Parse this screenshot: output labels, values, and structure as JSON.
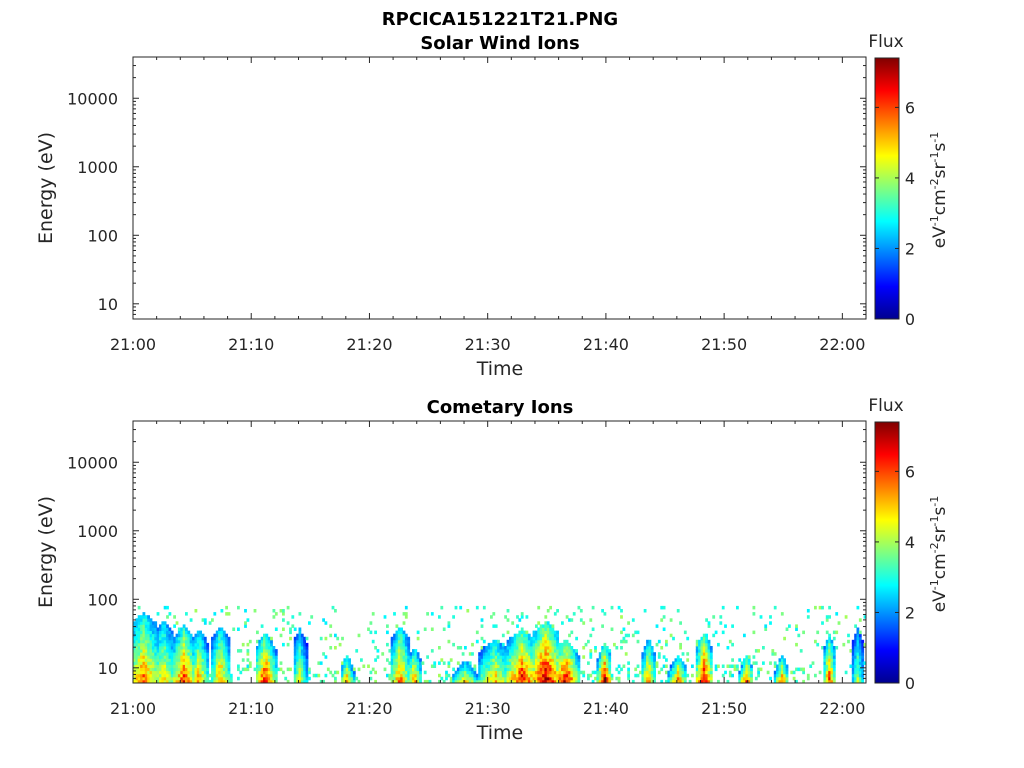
{
  "figure_title": "RPCICA151221T21.PNG",
  "colorbar": {
    "label": "Flux",
    "unit_parts": [
      "eV",
      "-1",
      "cm",
      "-2",
      "sr",
      "-1",
      "s",
      "-1"
    ],
    "ticks": [
      "0",
      "2",
      "4",
      "6"
    ],
    "range": [
      0,
      7.4
    ],
    "colormap": "jet"
  },
  "chart_data": [
    {
      "type": "heatmap",
      "title": "Solar Wind Ions",
      "xlabel": "Time",
      "ylabel": "Energy (eV)",
      "x_ticks": [
        "21:00",
        "21:10",
        "21:20",
        "21:30",
        "21:40",
        "21:50",
        "22:00"
      ],
      "x_range_minutes": [
        0,
        62
      ],
      "y_ticks": [
        "10",
        "100",
        "1000",
        "10000"
      ],
      "y_scale": "log",
      "y_range": [
        6,
        40000
      ],
      "bursts": []
    },
    {
      "type": "heatmap",
      "title": "Cometary Ions",
      "xlabel": "Time",
      "ylabel": "Energy (eV)",
      "x_ticks": [
        "21:00",
        "21:10",
        "21:20",
        "21:30",
        "21:40",
        "21:50",
        "22:00"
      ],
      "x_range_minutes": [
        0,
        62
      ],
      "y_ticks": [
        "10",
        "100",
        "1000",
        "10000"
      ],
      "y_scale": "log",
      "y_range": [
        6,
        40000
      ],
      "bursts": [
        {
          "t": 0.8,
          "width": 1.5,
          "peak_flux": 5.8,
          "max_energy": 60
        },
        {
          "t": 2.5,
          "width": 1.2,
          "peak_flux": 5.0,
          "max_energy": 45
        },
        {
          "t": 4.2,
          "width": 1.0,
          "peak_flux": 6.3,
          "max_energy": 40
        },
        {
          "t": 5.5,
          "width": 0.8,
          "peak_flux": 5.5,
          "max_energy": 35
        },
        {
          "t": 7.3,
          "width": 0.8,
          "peak_flux": 5.5,
          "max_energy": 40
        },
        {
          "t": 11.1,
          "width": 0.9,
          "peak_flux": 6.5,
          "max_energy": 30
        },
        {
          "t": 14.0,
          "width": 0.6,
          "peak_flux": 4.5,
          "max_energy": 35
        },
        {
          "t": 18.0,
          "width": 0.6,
          "peak_flux": 5.2,
          "max_energy": 15
        },
        {
          "t": 22.5,
          "width": 0.8,
          "peak_flux": 5.8,
          "max_energy": 40
        },
        {
          "t": 23.7,
          "width": 0.6,
          "peak_flux": 5.5,
          "max_energy": 20
        },
        {
          "t": 28.0,
          "width": 1.2,
          "peak_flux": 5.0,
          "max_energy": 12
        },
        {
          "t": 30.5,
          "width": 1.5,
          "peak_flux": 5.2,
          "max_energy": 25
        },
        {
          "t": 32.8,
          "width": 1.5,
          "peak_flux": 6.5,
          "max_energy": 35
        },
        {
          "t": 34.8,
          "width": 1.4,
          "peak_flux": 7.2,
          "max_energy": 45
        },
        {
          "t": 36.5,
          "width": 1.1,
          "peak_flux": 6.8,
          "max_energy": 25
        },
        {
          "t": 39.8,
          "width": 0.6,
          "peak_flux": 6.8,
          "max_energy": 22
        },
        {
          "t": 43.5,
          "width": 0.6,
          "peak_flux": 5.6,
          "max_energy": 25
        },
        {
          "t": 46.0,
          "width": 0.8,
          "peak_flux": 5.5,
          "max_energy": 15
        },
        {
          "t": 48.2,
          "width": 0.7,
          "peak_flux": 6.9,
          "max_energy": 30
        },
        {
          "t": 51.8,
          "width": 0.6,
          "peak_flux": 6.0,
          "max_energy": 15
        },
        {
          "t": 54.8,
          "width": 0.6,
          "peak_flux": 5.5,
          "max_energy": 15
        },
        {
          "t": 58.8,
          "width": 0.5,
          "peak_flux": 6.0,
          "max_energy": 30
        },
        {
          "t": 61.2,
          "width": 0.5,
          "peak_flux": 4.0,
          "max_energy": 35
        }
      ]
    }
  ]
}
